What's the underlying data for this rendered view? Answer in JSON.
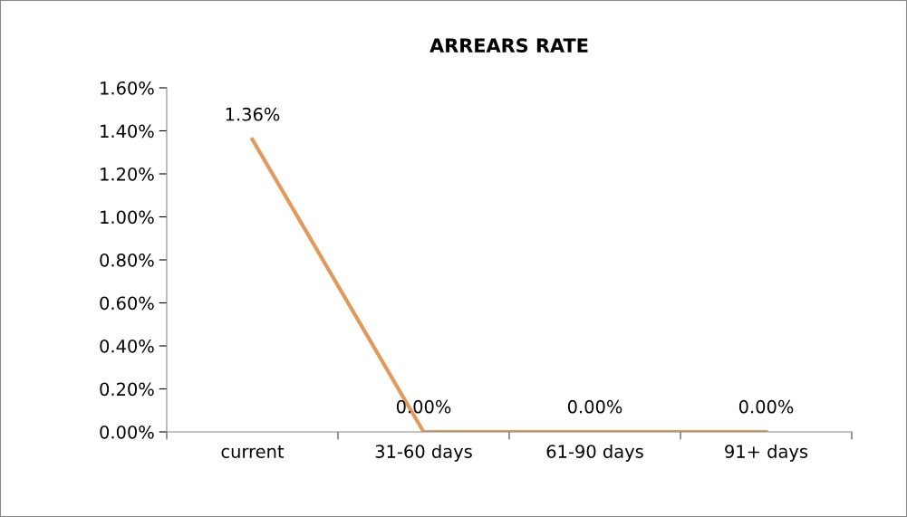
{
  "chart_data": {
    "type": "line",
    "title": "ARREARS RATE",
    "categories": [
      "current",
      "31-60 days",
      "61-90 days",
      "91+ days"
    ],
    "series": [
      {
        "color": "#e3995a",
        "values": [
          1.36,
          0.0,
          0.0,
          0.0
        ],
        "value_labels": [
          "1.36%",
          "0.00%",
          "0.00%",
          "0.00%"
        ]
      }
    ],
    "ylim": [
      0,
      1.6
    ],
    "yticks": [
      {
        "value": 0,
        "label": "0.00%"
      },
      {
        "value": 0.2,
        "label": "0.20%"
      },
      {
        "value": 0.4,
        "label": "0.40%"
      },
      {
        "value": 0.6,
        "label": "0.60%"
      },
      {
        "value": 0.8,
        "label": "0.80%"
      },
      {
        "value": 1.0,
        "label": "1.00%"
      },
      {
        "value": 1.2,
        "label": "1.20%"
      },
      {
        "value": 1.4,
        "label": "1.40%"
      },
      {
        "value": 1.6,
        "label": "1.60%"
      }
    ],
    "grid": false,
    "legend": false,
    "marker": "none",
    "line_style": "solid"
  }
}
